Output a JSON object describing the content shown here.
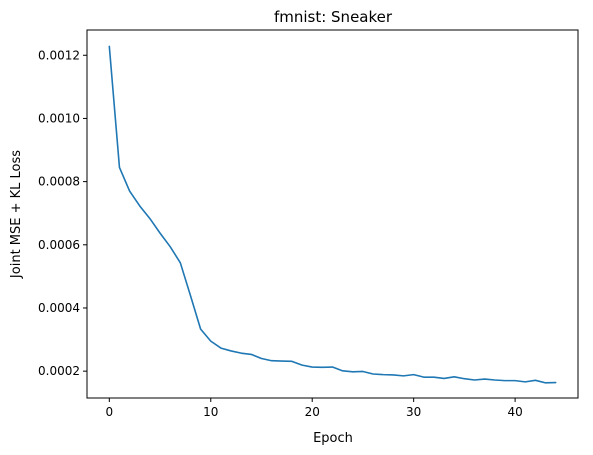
{
  "chart_data": {
    "type": "line",
    "title": "fmnist: Sneaker",
    "xlabel": "Epoch",
    "ylabel": "Joint MSE + KL Loss",
    "xlim": [
      -2.2,
      46.2
    ],
    "ylim": [
      0.000115,
      0.00128
    ],
    "xticks": [
      0,
      10,
      20,
      30,
      40
    ],
    "yticks": [
      0.0002,
      0.0004,
      0.0006,
      0.0008,
      0.001,
      0.0012
    ],
    "ytick_labels": [
      "0.0002",
      "0.0004",
      "0.0006",
      "0.0008",
      "0.0010",
      "0.0012"
    ],
    "grid": false,
    "series": [
      {
        "color": "#1f77b4",
        "x": [
          0,
          1,
          2,
          3,
          4,
          5,
          6,
          7,
          8,
          9,
          10,
          11,
          12,
          13,
          14,
          15,
          16,
          17,
          18,
          19,
          20,
          21,
          22,
          23,
          24,
          25,
          26,
          27,
          28,
          29,
          30,
          31,
          32,
          33,
          34,
          35,
          36,
          37,
          38,
          39,
          40,
          41,
          42,
          43,
          44
        ],
        "values": [
          0.001228,
          0.000845,
          0.00077,
          0.000723,
          0.000683,
          0.000637,
          0.000594,
          0.000543,
          0.000439,
          0.000333,
          0.000295,
          0.000273,
          0.000264,
          0.000257,
          0.000253,
          0.00024,
          0.000233,
          0.000232,
          0.000231,
          0.000219,
          0.000213,
          0.000212,
          0.000213,
          0.000201,
          0.000198,
          0.000199,
          0.000191,
          0.000189,
          0.000188,
          0.000185,
          0.000189,
          0.000181,
          0.000181,
          0.000177,
          0.000182,
          0.000176,
          0.000172,
          0.000175,
          0.000172,
          0.00017,
          0.00017,
          0.000166,
          0.000171,
          0.000163,
          0.000164
        ]
      }
    ]
  }
}
